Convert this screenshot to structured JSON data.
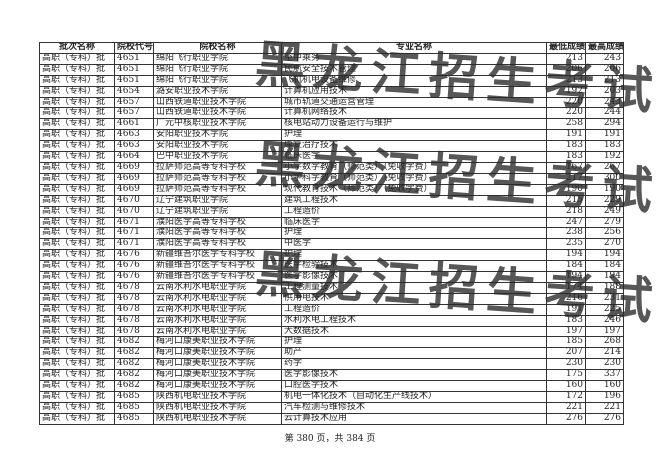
{
  "table": {
    "headers": [
      "批次名称",
      "院校代号",
      "院校名称",
      "专业名称",
      "最低成绩",
      "最高成绩"
    ],
    "rows": [
      [
        "高职（专科）批",
        "4651",
        "绵阳飞行职业学院",
        "空中乘务",
        "213",
        "243"
      ],
      [
        "高职（专科）批",
        "4651",
        "绵阳飞行职业学院",
        "民航安全技术管理",
        "206",
        "206"
      ],
      [
        "高职（专科）批",
        "4651",
        "绵阳飞行职业学院",
        "飞机机电设备维修",
        "213",
        "213"
      ],
      [
        "高职（专科）批",
        "4654",
        "潞安职业技术学院",
        "计算机应用技术",
        "192",
        "203"
      ],
      [
        "高职（专科）批",
        "4657",
        "山西铁道职业技术学院",
        "城市轨道交通运营管理",
        "220",
        "243"
      ],
      [
        "高职（专科）批",
        "4657",
        "山西铁道职业技术学院",
        "计算机网络技术",
        "220",
        "244"
      ],
      [
        "高职（专科）批",
        "4661",
        "广元中核职业技术学院",
        "核电站动力设备运行与维护",
        "258",
        "294"
      ],
      [
        "高职（专科）批",
        "4663",
        "安阳职业技术学院",
        "护理",
        "191",
        "191"
      ],
      [
        "高职（专科）批",
        "4663",
        "安阳职业技术学院",
        "康复治疗技术",
        "183",
        "183"
      ],
      [
        "高职（专科）批",
        "4664",
        "巴中职业技术学院",
        "临床医学",
        "183",
        "192"
      ],
      [
        "高职（专科）批",
        "4669",
        "拉萨师范高等专科学校",
        "小学数学教育（师范类）（免收学费）",
        "167",
        "267"
      ],
      [
        "高职（专科）批",
        "4669",
        "拉萨师范高等专科学校",
        "小学科学教育（师范类）（免收学费）",
        "217",
        "300"
      ],
      [
        "高职（专科）批",
        "4669",
        "拉萨师范高等专科学校",
        "现代教育技术（师范类）（免收学费）",
        "190",
        "190"
      ],
      [
        "高职（专科）批",
        "4670",
        "辽宁建筑职业学院",
        "建筑工程技术",
        "215",
        "229"
      ],
      [
        "高职（专科）批",
        "4670",
        "辽宁建筑职业学院",
        "工程造价",
        "218",
        "249"
      ],
      [
        "高职（专科）批",
        "4671",
        "濮阳医学高等专科学校",
        "临床医学",
        "247",
        "279"
      ],
      [
        "高职（专科）批",
        "4671",
        "濮阳医学高等专科学校",
        "护理",
        "238",
        "256"
      ],
      [
        "高职（专科）批",
        "4671",
        "濮阳医学高等专科学校",
        "中医学",
        "235",
        "270"
      ],
      [
        "高职（专科）批",
        "4676",
        "新疆维吾尔医学专科学校",
        "护理",
        "194",
        "194"
      ],
      [
        "高职（专科）批",
        "4676",
        "新疆维吾尔医学专科学校",
        "医学检验技术",
        "184",
        "184"
      ],
      [
        "高职（专科）批",
        "4676",
        "新疆维吾尔医学专科学校",
        "医学影像技术",
        "194",
        "194"
      ],
      [
        "高职（专科）批",
        "4678",
        "云南水利水电职业学院",
        "工程测量技术",
        "174",
        "188"
      ],
      [
        "高职（专科）批",
        "4678",
        "云南水利水电职业学院",
        "供用电技术",
        "216",
        "231"
      ],
      [
        "高职（专科）批",
        "4678",
        "云南水利水电职业学院",
        "工程造价",
        "191",
        "225"
      ],
      [
        "高职（专科）批",
        "4678",
        "云南水利水电职业学院",
        "水利水电工程技术",
        "183",
        "246"
      ],
      [
        "高职（专科）批",
        "4678",
        "云南水利水电职业学院",
        "大数据技术",
        "197",
        "197"
      ],
      [
        "高职（专科）批",
        "4682",
        "梅河口康美职业技术学院",
        "护理",
        "185",
        "268"
      ],
      [
        "高职（专科）批",
        "4682",
        "梅河口康美职业技术学院",
        "助产",
        "207",
        "214"
      ],
      [
        "高职（专科）批",
        "4682",
        "梅河口康美职业技术学院",
        "药学",
        "230",
        "230"
      ],
      [
        "高职（专科）批",
        "4682",
        "梅河口康美职业技术学院",
        "医学影像技术",
        "175",
        "337"
      ],
      [
        "高职（专科）批",
        "4682",
        "梅河口康美职业技术学院",
        "口腔医学技术",
        "160",
        "160"
      ],
      [
        "高职（专科）批",
        "4685",
        "陕西机电职业技术学院",
        "机电一体化技术（自动化生产线技术）",
        "172",
        "196"
      ],
      [
        "高职（专科）批",
        "4685",
        "陕西机电职业技术学院",
        "汽车检测与维修技术",
        "221",
        "221"
      ],
      [
        "高职（专科）批",
        "4685",
        "陕西机电职业技术学院",
        "云计算技术应用",
        "276",
        "276"
      ]
    ]
  },
  "watermark": "黑龙江招生考试院",
  "footer": "第 380 页，共 384 页"
}
